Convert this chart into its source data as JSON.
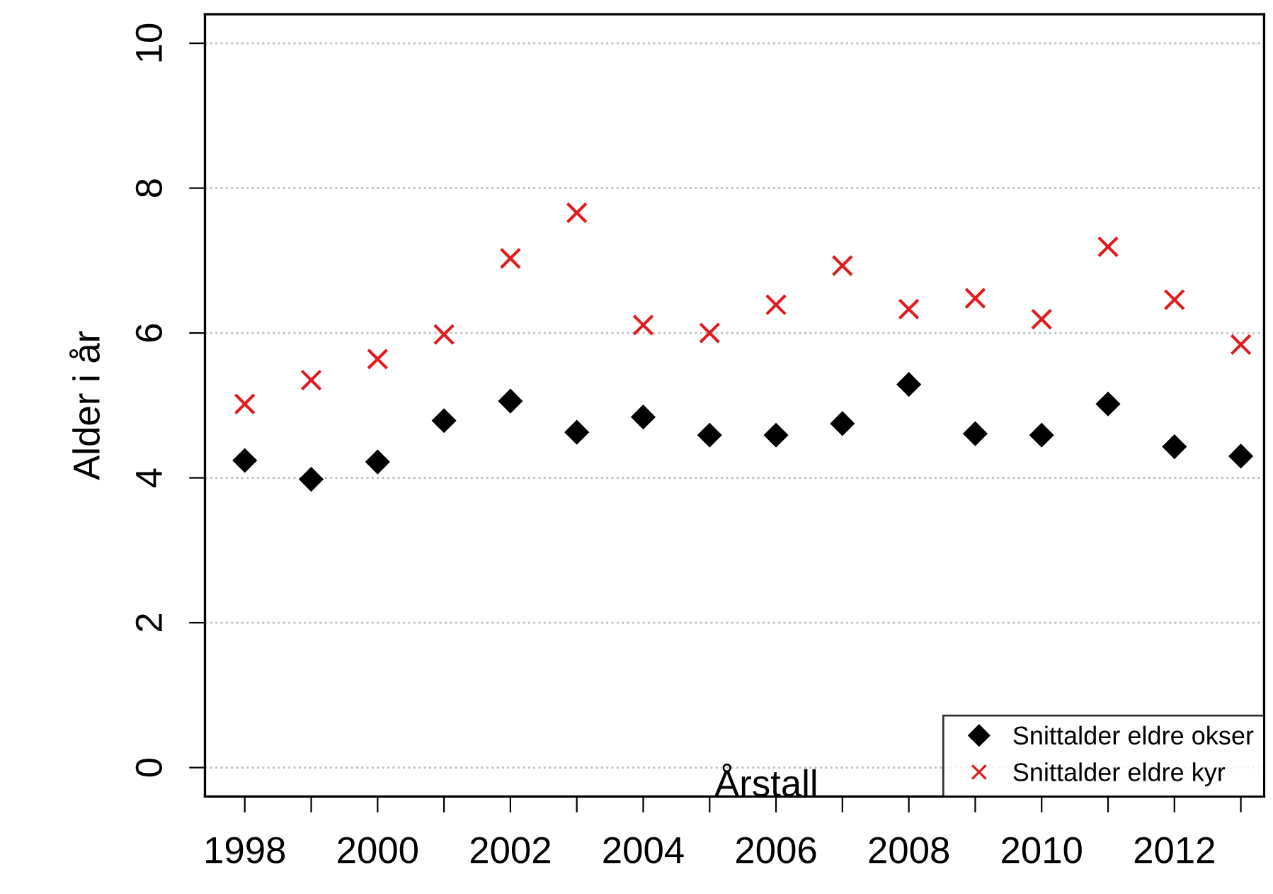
{
  "chart_data": {
    "type": "scatter",
    "xlabel": "Årstall",
    "ylabel": "Alder i år",
    "x": [
      1998,
      1999,
      2000,
      2001,
      2002,
      2003,
      2004,
      2005,
      2006,
      2007,
      2008,
      2009,
      2010,
      2011,
      2012,
      2013
    ],
    "series": [
      {
        "name": "Snittalder eldre okser",
        "color": "#000000",
        "marker": "diamond",
        "values": [
          4.24,
          3.98,
          4.22,
          4.79,
          5.06,
          4.63,
          4.84,
          4.59,
          4.59,
          4.75,
          5.29,
          4.61,
          4.59,
          5.02,
          4.43,
          4.3
        ]
      },
      {
        "name": "Snittalder eldre kyr",
        "color": "#e31a1c",
        "marker": "cross",
        "values": [
          5.02,
          5.35,
          5.64,
          5.98,
          7.03,
          7.66,
          6.11,
          6.0,
          6.39,
          6.93,
          6.33,
          6.48,
          6.19,
          7.19,
          6.46,
          5.84
        ]
      }
    ],
    "xlim": [
      1997.4,
      2013.35
    ],
    "ylim": [
      -0.4,
      10.4
    ],
    "xticks": [
      1998,
      {
        "value": 1999,
        "label": null
      },
      2000,
      {
        "value": 2001,
        "label": null
      },
      2002,
      {
        "value": 2003,
        "label": null
      },
      2004,
      {
        "value": 2005,
        "label": null
      },
      2006,
      {
        "value": 2007,
        "label": null
      },
      2008,
      {
        "value": 2009,
        "label": null
      },
      2010,
      {
        "value": 2011,
        "label": null
      },
      2012,
      {
        "value": 2013,
        "label": null
      }
    ],
    "yticks": [
      0,
      2,
      4,
      6,
      8,
      10
    ],
    "grid": "y",
    "legend": "bottom right"
  }
}
